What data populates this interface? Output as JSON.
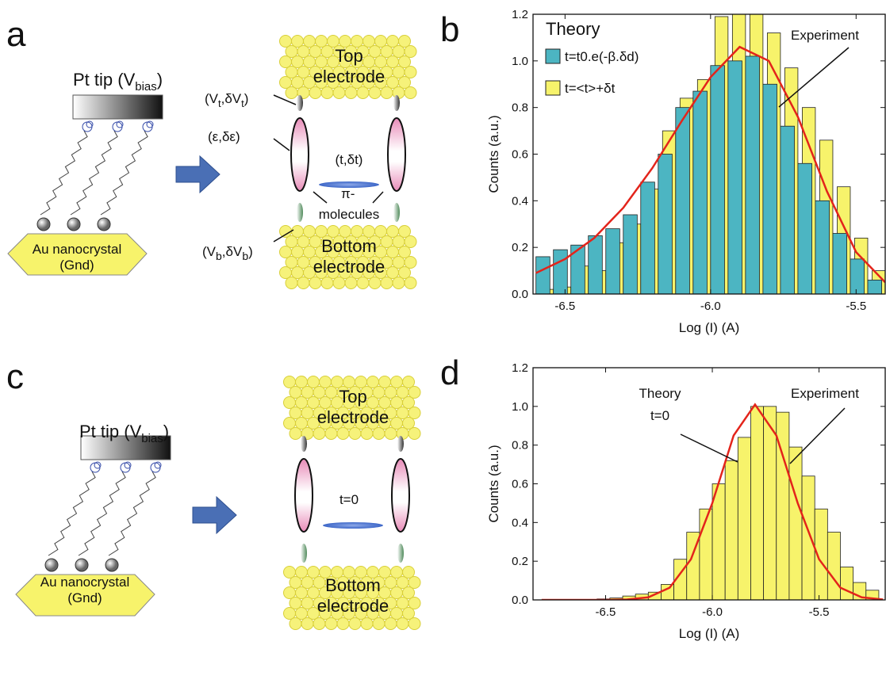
{
  "panels": {
    "a": "a",
    "b": "b",
    "c": "c",
    "d": "d"
  },
  "diagram_a": {
    "tip": [
      "Pt tip (V",
      "bias",
      ")"
    ],
    "nanocrystal": [
      "Au nanocrystal",
      "(Gnd)"
    ],
    "top_electrode": [
      "Top",
      "electrode"
    ],
    "bottom_electrode": [
      "Bottom",
      "electrode"
    ],
    "v_top": [
      "(V",
      "t",
      ",δV",
      "t",
      ")"
    ],
    "epsilon": "(ε,δε)",
    "coupling": "(t,δt)",
    "molecules": [
      "π-",
      "molecules"
    ],
    "v_bottom": [
      "(V",
      "b",
      ",δV",
      "b",
      ")"
    ]
  },
  "diagram_c": {
    "tip": [
      "Pt tip (V",
      "bias",
      ")"
    ],
    "nanocrystal": [
      "Au nanocrystal",
      "(Gnd)"
    ],
    "top_electrode": [
      "Top",
      "electrode"
    ],
    "bottom_electrode": [
      "Bottom",
      "electrode"
    ],
    "coupling": "t=0"
  },
  "chart_data": [
    {
      "type": "histogram",
      "x_label": "Log (I) (A)",
      "y_label": "Counts (a.u.)",
      "xlim": [
        -6.61,
        -5.4
      ],
      "ylim": [
        0,
        1.2
      ],
      "xticks": [
        -6.5,
        {
          "value": -6,
          "label": "-6.0"
        },
        -5.5
      ],
      "yticks": [
        {
          "value": 0,
          "label": "0.0"
        },
        0.2,
        0.4,
        0.6,
        0.8,
        {
          "value": 1,
          "label": "1.0"
        },
        1.2
      ],
      "legend_title": "Theory",
      "bins": [
        -6.6,
        -6.54,
        -6.48,
        -6.42,
        -6.36,
        -6.3,
        -6.24,
        -6.18,
        -6.12,
        -6.06,
        -6.0,
        -5.94,
        -5.88,
        -5.82,
        -5.76,
        -5.7,
        -5.64,
        -5.58,
        -5.52,
        -5.46,
        -5.4
      ],
      "series": [
        {
          "name": "t=<t>+δt",
          "color": "#f7f36b",
          "values": [
            0.02,
            0.03,
            0.12,
            0.1,
            0.22,
            0.3,
            0.45,
            0.7,
            0.84,
            0.92,
            1.19,
            1.2,
            1.2,
            1.12,
            0.97,
            0.8,
            0.66,
            0.46,
            0.24,
            0.1
          ]
        },
        {
          "name": "t=t0.e(-β.δd)",
          "color": "#4cb5c2",
          "values": [
            0.16,
            0.19,
            0.21,
            0.25,
            0.28,
            0.34,
            0.48,
            0.6,
            0.8,
            0.87,
            0.98,
            1.0,
            1.02,
            0.9,
            0.72,
            0.56,
            0.4,
            0.26,
            0.15,
            0.06
          ]
        }
      ],
      "fit": {
        "color": "#e3241b",
        "x": [
          -6.6,
          -6.5,
          -6.4,
          -6.3,
          -6.2,
          -6.1,
          -6.0,
          -5.9,
          -5.8,
          -5.7,
          -5.6,
          -5.5,
          -5.4
        ],
        "y": [
          0.09,
          0.15,
          0.24,
          0.37,
          0.54,
          0.74,
          0.93,
          1.06,
          1.0,
          0.76,
          0.44,
          0.18,
          0.05
        ]
      },
      "annotations": [
        "Experiment"
      ]
    },
    {
      "type": "histogram",
      "x_label": "Log (I) (A)",
      "y_label": "Counts (a.u.)",
      "xlim": [
        -6.84,
        -5.19
      ],
      "ylim": [
        0,
        1.2
      ],
      "xticks": [
        -6.5,
        {
          "value": -6,
          "label": "-6.0"
        },
        -5.5
      ],
      "yticks": [
        {
          "value": 0,
          "label": "0.0"
        },
        0.2,
        0.4,
        0.6,
        0.8,
        {
          "value": 1,
          "label": "1.0"
        },
        1.2
      ],
      "bins": [
        -6.54,
        -6.48,
        -6.42,
        -6.36,
        -6.3,
        -6.24,
        -6.18,
        -6.12,
        -6.06,
        -6.0,
        -5.94,
        -5.88,
        -5.82,
        -5.76,
        -5.7,
        -5.64,
        -5.58,
        -5.52,
        -5.46,
        -5.4,
        -5.34,
        -5.28,
        -5.22
      ],
      "color": "#f7f36b",
      "values": [
        0.005,
        0.01,
        0.02,
        0.03,
        0.04,
        0.08,
        0.21,
        0.35,
        0.47,
        0.6,
        0.72,
        0.84,
        1.0,
        1.0,
        0.97,
        0.79,
        0.64,
        0.47,
        0.35,
        0.17,
        0.09,
        0.05
      ],
      "fit": {
        "color": "#e3241b",
        "x": [
          -6.8,
          -6.7,
          -6.6,
          -6.5,
          -6.4,
          -6.3,
          -6.2,
          -6.1,
          -6.0,
          -5.9,
          -5.8,
          -5.7,
          -5.6,
          -5.5,
          -5.4,
          -5.3,
          -5.2
        ],
        "y": [
          0,
          0,
          0,
          0,
          0.002,
          0.013,
          0.063,
          0.21,
          0.5,
          0.85,
          1.01,
          0.85,
          0.5,
          0.21,
          0.063,
          0.013,
          0.002
        ]
      },
      "annotations": [
        "Theory",
        "t=0",
        "Experiment"
      ]
    }
  ]
}
